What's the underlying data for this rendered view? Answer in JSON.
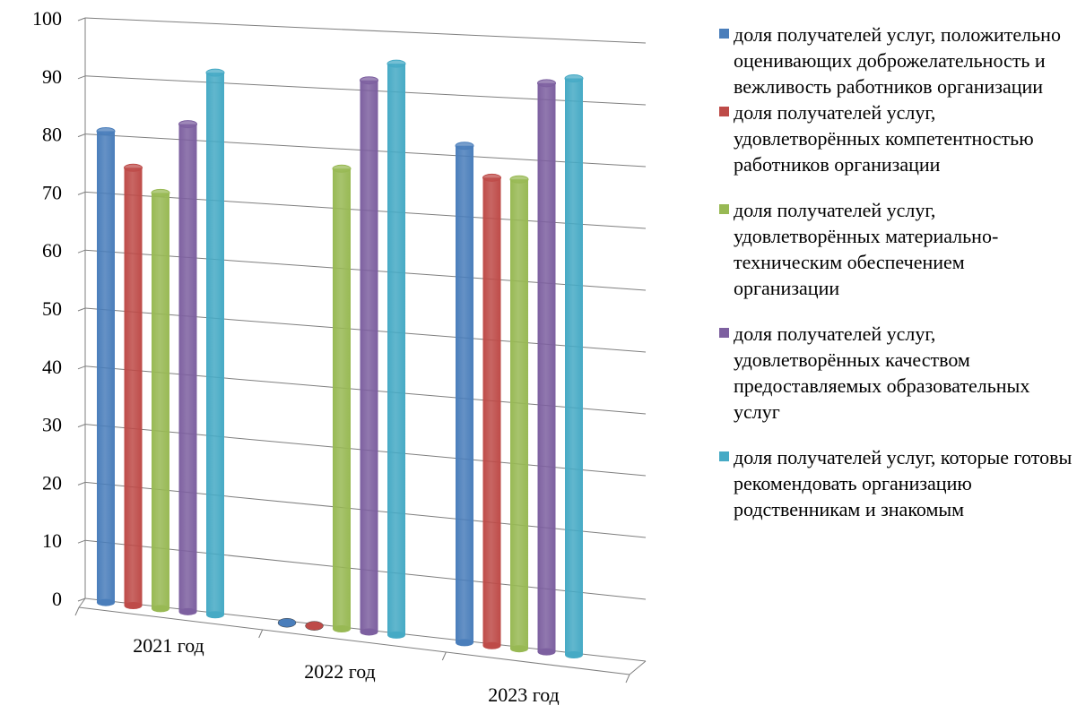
{
  "chart_data": {
    "type": "bar",
    "categories": [
      "2021 год",
      "2022 год",
      "2023 год"
    ],
    "series": [
      {
        "name": "доля получателей услуг, положительно оценивающих доброжелательность и вежливость работников организации",
        "values": [
          81,
          0,
          82
        ],
        "color": "#4a7ebb"
      },
      {
        "name": "доля получателей услуг, удовлетворённых компетентностью работников организации",
        "values": [
          75,
          0,
          77
        ],
        "color": "#be4b48"
      },
      {
        "name": "доля получателей услуг, удовлетворённых материально-техническим обеспечением организации",
        "values": [
          71,
          77,
          77
        ],
        "color": "#98b954"
      },
      {
        "name": "доля получателей услуг, удовлетворённых качеством предоставляемых образовательных услуг",
        "values": [
          83,
          92,
          93
        ],
        "color": "#7d60a0"
      },
      {
        "name": "доля получателей услуг, которые готовы рекомендовать организацию родственникам и знакомым",
        "values": [
          92,
          95,
          94
        ],
        "color": "#46aac5"
      }
    ],
    "ylim": [
      0,
      100
    ],
    "yticks": [
      "0",
      "10",
      "20",
      "30",
      "40",
      "50",
      "60",
      "70",
      "80",
      "90",
      "100"
    ],
    "grid": true,
    "legend_position": "right"
  }
}
